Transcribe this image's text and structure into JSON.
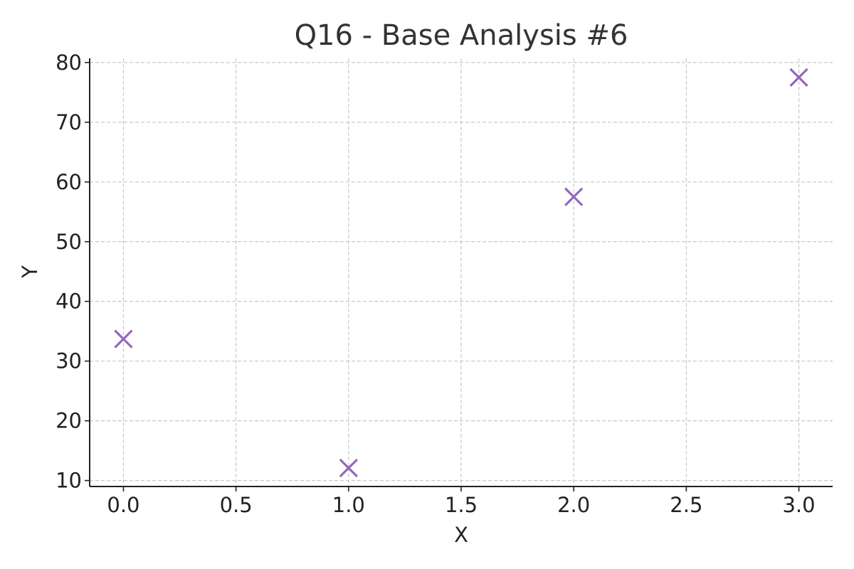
{
  "chart_data": {
    "type": "scatter",
    "title": "Q16 - Base Analysis #6",
    "xlabel": "X",
    "ylabel": "Y",
    "xlim": [
      -0.15,
      3.15
    ],
    "ylim": [
      9,
      80.7
    ],
    "x_ticks": [
      "0.0",
      "0.5",
      "1.0",
      "1.5",
      "2.0",
      "2.5",
      "3.0"
    ],
    "y_ticks": [
      "10",
      "20",
      "30",
      "40",
      "50",
      "60",
      "70",
      "80"
    ],
    "grid": true,
    "marker": "x",
    "marker_color": "#9467bd",
    "series": [
      {
        "x": [
          0,
          1,
          2,
          3
        ],
        "y": [
          33.7,
          12.1,
          57.5,
          77.5
        ]
      }
    ]
  }
}
